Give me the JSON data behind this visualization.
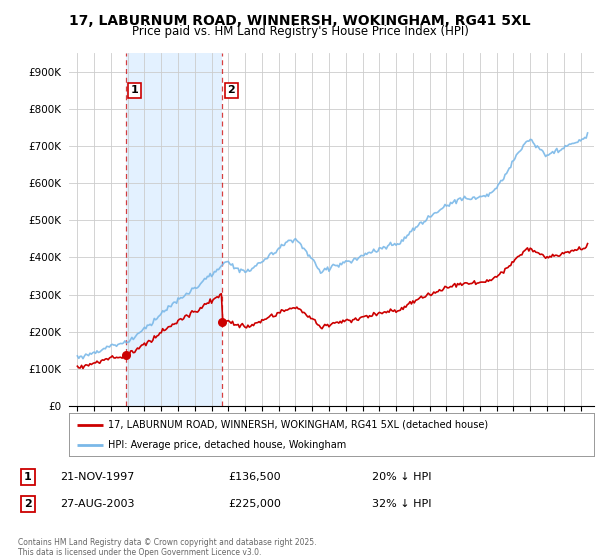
{
  "title": "17, LABURNUM ROAD, WINNERSH, WOKINGHAM, RG41 5XL",
  "subtitle": "Price paid vs. HM Land Registry's House Price Index (HPI)",
  "legend_line1": "17, LABURNUM ROAD, WINNERSH, WOKINGHAM, RG41 5XL (detached house)",
  "legend_line2": "HPI: Average price, detached house, Wokingham",
  "sale1_date": "21-NOV-1997",
  "sale1_price": "£136,500",
  "sale1_hpi": "20% ↓ HPI",
  "sale1_year": 1997.88,
  "sale1_value": 136500,
  "sale2_date": "27-AUG-2003",
  "sale2_price": "£225,000",
  "sale2_hpi": "32% ↓ HPI",
  "sale2_year": 2003.65,
  "sale2_value": 225000,
  "price_color": "#cc0000",
  "hpi_color": "#7ab8e8",
  "shade_color": "#ddeeff",
  "background_color": "#ffffff",
  "grid_color": "#cccccc",
  "footer": "Contains HM Land Registry data © Crown copyright and database right 2025.\nThis data is licensed under the Open Government Licence v3.0.",
  "ylim": [
    0,
    950000
  ],
  "yticks": [
    0,
    100000,
    200000,
    300000,
    400000,
    500000,
    600000,
    700000,
    800000,
    900000
  ],
  "ytick_labels": [
    "£0",
    "£100K",
    "£200K",
    "£300K",
    "£400K",
    "£500K",
    "£600K",
    "£700K",
    "£800K",
    "£900K"
  ],
  "xlim_start": 1994.5,
  "xlim_end": 2025.8
}
